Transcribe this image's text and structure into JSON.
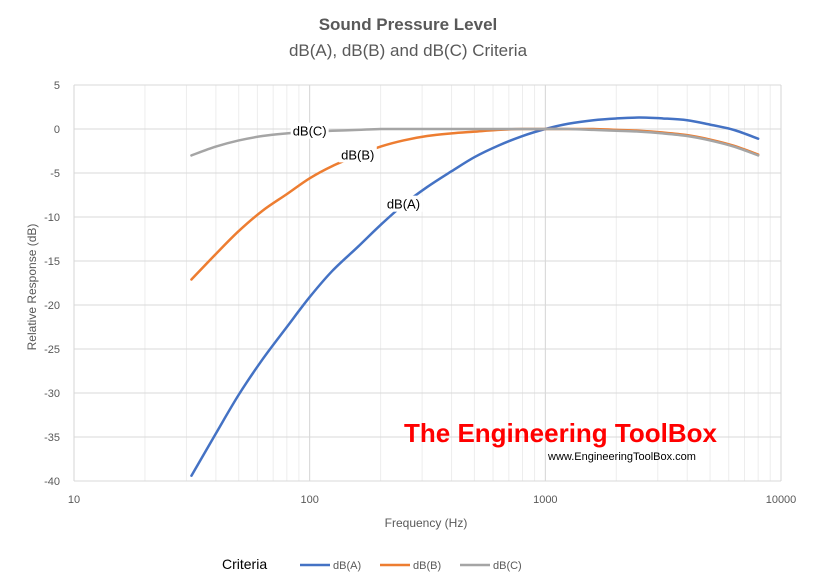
{
  "chart_data": {
    "type": "line",
    "title": "Sound Pressure Level",
    "subtitle": "dB(A), dB(B) and dB(C) Criteria",
    "xlabel": "Frequency (Hz)",
    "ylabel": "Relative Response (dB)",
    "xscale": "log",
    "xlim": [
      10,
      10000
    ],
    "ylim": [
      -40,
      5
    ],
    "x_ticks": [
      10,
      100,
      1000,
      10000
    ],
    "x_tick_labels": [
      "10",
      "100",
      "1000",
      "10000"
    ],
    "y_ticks": [
      5,
      0,
      -5,
      -10,
      -15,
      -20,
      -25,
      -30,
      -35,
      -40
    ],
    "y_tick_labels": [
      "5",
      "0",
      "-5",
      "-10",
      "-15",
      "-20",
      "-25",
      "-30",
      "-35",
      "-40"
    ],
    "grid": true,
    "legend_title": "Criteria",
    "legend_position": "bottom",
    "series": [
      {
        "name": "dB(A)",
        "color": "#4472c4",
        "x": [
          31.5,
          40,
          50,
          63,
          80,
          100,
          125,
          160,
          200,
          250,
          315,
          400,
          500,
          630,
          800,
          1000,
          1250,
          1600,
          2000,
          2500,
          3150,
          4000,
          5000,
          6300,
          8000
        ],
        "y": [
          -39.4,
          -34.6,
          -30.2,
          -26.2,
          -22.5,
          -19.1,
          -16.1,
          -13.4,
          -10.9,
          -8.6,
          -6.6,
          -4.8,
          -3.2,
          -1.9,
          -0.8,
          0,
          0.6,
          1.0,
          1.2,
          1.3,
          1.2,
          1.0,
          0.5,
          -0.1,
          -1.1
        ]
      },
      {
        "name": "dB(B)",
        "color": "#ed7d31",
        "x": [
          31.5,
          40,
          50,
          63,
          80,
          100,
          125,
          160,
          200,
          250,
          315,
          400,
          500,
          630,
          800,
          1000,
          1250,
          1600,
          2000,
          2500,
          3150,
          4000,
          5000,
          6300,
          8000
        ],
        "y": [
          -17.1,
          -14.2,
          -11.6,
          -9.3,
          -7.4,
          -5.6,
          -4.2,
          -3.0,
          -2.0,
          -1.3,
          -0.8,
          -0.5,
          -0.3,
          -0.1,
          0,
          0,
          0,
          0,
          -0.1,
          -0.2,
          -0.4,
          -0.7,
          -1.2,
          -1.9,
          -2.9
        ]
      },
      {
        "name": "dB(C)",
        "color": "#a5a5a5",
        "x": [
          31.5,
          40,
          50,
          63,
          80,
          100,
          125,
          160,
          200,
          250,
          315,
          400,
          500,
          630,
          800,
          1000,
          1250,
          1600,
          2000,
          2500,
          3150,
          4000,
          5000,
          6300,
          8000
        ],
        "y": [
          -3.0,
          -2.0,
          -1.3,
          -0.8,
          -0.5,
          -0.3,
          -0.2,
          -0.1,
          0,
          0,
          0,
          0,
          0,
          0,
          0,
          0,
          0,
          -0.1,
          -0.2,
          -0.3,
          -0.5,
          -0.8,
          -1.3,
          -2.0,
          -3.0
        ]
      }
    ],
    "annotations": [
      {
        "text": "dB(C)",
        "series": "dB(C)",
        "x": 100
      },
      {
        "text": "dB(B)",
        "series": "dB(B)",
        "x": 160
      },
      {
        "text": "dB(A)",
        "series": "dB(A)",
        "x": 250
      }
    ]
  },
  "watermark": {
    "title": "The Engineering ToolBox",
    "url": "www.EngineeringToolBox.com"
  }
}
